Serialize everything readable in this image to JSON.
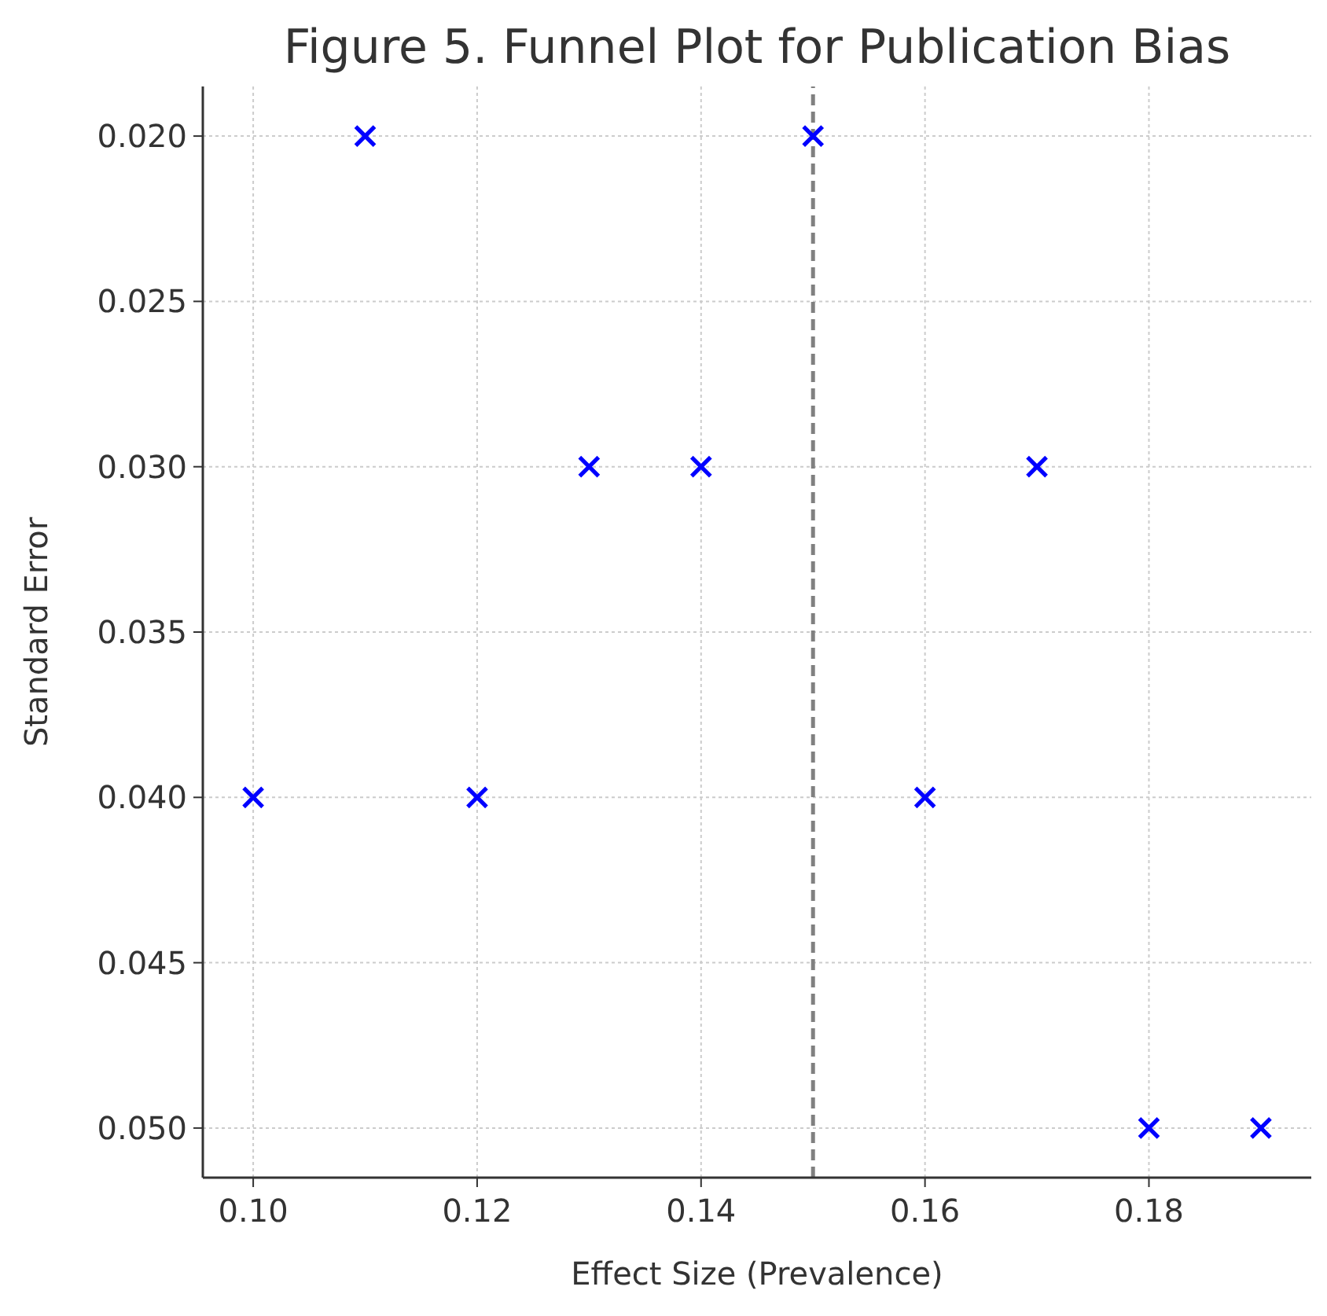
{
  "chart_data": {
    "type": "scatter",
    "title": "Figure 5. Funnel Plot for Publication Bias",
    "xlabel": "Effect Size (Prevalence)",
    "ylabel": "Standard Error",
    "x": [
      0.1,
      0.11,
      0.12,
      0.13,
      0.14,
      0.15,
      0.16,
      0.17,
      0.18,
      0.19
    ],
    "series": [
      {
        "color": "#0000ff",
        "values": [
          0.04,
          0.02,
          0.04,
          0.03,
          0.03,
          0.02,
          0.04,
          0.03,
          0.05,
          0.05
        ]
      }
    ],
    "xlim": [
      0.0955,
      0.1945
    ],
    "ylim": [
      0.0515,
      0.0185
    ],
    "xticks": [
      {
        "value": 0.1,
        "label": "0.10"
      },
      {
        "value": 0.12,
        "label": "0.12"
      },
      {
        "value": 0.14,
        "label": "0.14"
      },
      {
        "value": 0.16,
        "label": "0.16"
      },
      {
        "value": 0.18,
        "label": "0.18"
      }
    ],
    "yticks": [
      {
        "value": 0.02,
        "label": "0.020"
      },
      {
        "value": 0.025,
        "label": "0.025"
      },
      {
        "value": 0.03,
        "label": "0.030"
      },
      {
        "value": 0.035,
        "label": "0.035"
      },
      {
        "value": 0.04,
        "label": "0.040"
      },
      {
        "value": 0.045,
        "label": "0.045"
      },
      {
        "value": 0.05,
        "label": "0.050"
      }
    ],
    "ref_lines": [
      {
        "axis": "x",
        "value": 0.15,
        "color": "#808080",
        "line_style": "dashed"
      }
    ],
    "grid": true,
    "marker": "cross"
  }
}
